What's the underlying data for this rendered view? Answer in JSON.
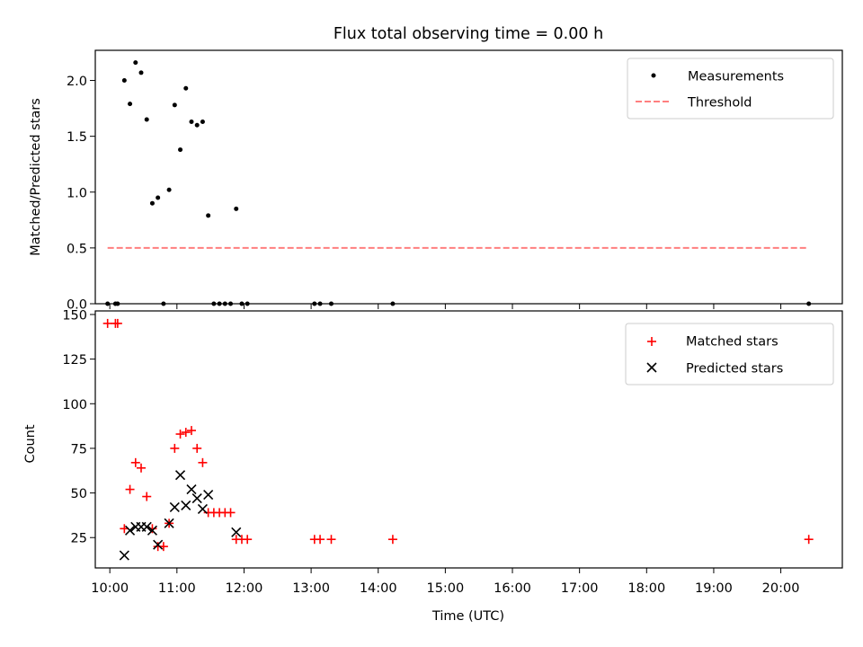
{
  "figure": {
    "title": "Flux total observing time = 0.00 h"
  },
  "chart_data": [
    {
      "type": "scatter",
      "title": "Flux total observing time = 0.00 h",
      "xlabel": "",
      "ylabel": "Matched/Predicted stars",
      "xlim": [
        "09:47",
        "20:55"
      ],
      "ylim": [
        0,
        2.27
      ],
      "yticks": [
        0.0,
        0.5,
        1.0,
        1.5,
        2.0
      ],
      "ytick_labels": [
        "0.0",
        "0.5",
        "1.0",
        "1.5",
        "2.0"
      ],
      "legend": {
        "position": "top-right",
        "entries": [
          "Measurements",
          "Threshold"
        ]
      },
      "series": [
        {
          "name": "Measurements",
          "kind": "scatter",
          "marker": "dot",
          "color": "#000000",
          "points": [
            {
              "x": "09:58",
              "y": 0.0
            },
            {
              "x": "10:05",
              "y": 0.0
            },
            {
              "x": "10:07",
              "y": 0.0
            },
            {
              "x": "10:13",
              "y": 2.0
            },
            {
              "x": "10:18",
              "y": 1.79
            },
            {
              "x": "10:23",
              "y": 2.16
            },
            {
              "x": "10:28",
              "y": 2.07
            },
            {
              "x": "10:33",
              "y": 1.65
            },
            {
              "x": "10:38",
              "y": 0.9
            },
            {
              "x": "10:43",
              "y": 0.95
            },
            {
              "x": "10:48",
              "y": 0.0
            },
            {
              "x": "10:53",
              "y": 1.02
            },
            {
              "x": "10:58",
              "y": 1.78
            },
            {
              "x": "11:03",
              "y": 1.38
            },
            {
              "x": "11:08",
              "y": 1.93
            },
            {
              "x": "11:13",
              "y": 1.63
            },
            {
              "x": "11:18",
              "y": 1.6
            },
            {
              "x": "11:23",
              "y": 1.63
            },
            {
              "x": "11:28",
              "y": 0.79
            },
            {
              "x": "11:33",
              "y": 0.0
            },
            {
              "x": "11:38",
              "y": 0.0
            },
            {
              "x": "11:43",
              "y": 0.0
            },
            {
              "x": "11:48",
              "y": 0.0
            },
            {
              "x": "11:53",
              "y": 0.85
            },
            {
              "x": "11:58",
              "y": 0.0
            },
            {
              "x": "12:03",
              "y": 0.0
            },
            {
              "x": "13:03",
              "y": 0.0
            },
            {
              "x": "13:08",
              "y": 0.0
            },
            {
              "x": "13:18",
              "y": 0.0
            },
            {
              "x": "14:13",
              "y": 0.0
            },
            {
              "x": "20:25",
              "y": 0.0
            }
          ]
        },
        {
          "name": "Threshold",
          "kind": "line",
          "style": "dashed",
          "color": "#ff7f7f",
          "points": [
            {
              "x": "09:58",
              "y": 0.5
            },
            {
              "x": "20:25",
              "y": 0.5
            }
          ]
        }
      ]
    },
    {
      "type": "scatter",
      "title": "",
      "xlabel": "Time (UTC)",
      "ylabel": "Count",
      "xlim": [
        "09:47",
        "20:55"
      ],
      "ylim": [
        8,
        152
      ],
      "yticks": [
        25,
        50,
        75,
        100,
        125,
        150
      ],
      "ytick_labels": [
        "25",
        "50",
        "75",
        "100",
        "125",
        "150"
      ],
      "xticks": [
        "10:00",
        "11:00",
        "12:00",
        "13:00",
        "14:00",
        "15:00",
        "16:00",
        "17:00",
        "18:00",
        "19:00",
        "20:00"
      ],
      "xtick_labels": [
        "10:00",
        "11:00",
        "12:00",
        "13:00",
        "14:00",
        "15:00",
        "16:00",
        "17:00",
        "18:00",
        "19:00",
        "20:00"
      ],
      "legend": {
        "position": "top-right",
        "entries": [
          "Matched stars",
          "Predicted stars"
        ]
      },
      "series": [
        {
          "name": "Matched stars",
          "marker": "plus",
          "color": "#ff0000",
          "points": [
            {
              "x": "09:58",
              "y": 145
            },
            {
              "x": "10:05",
              "y": 145
            },
            {
              "x": "10:07",
              "y": 145
            },
            {
              "x": "10:13",
              "y": 30
            },
            {
              "x": "10:18",
              "y": 52
            },
            {
              "x": "10:23",
              "y": 67
            },
            {
              "x": "10:28",
              "y": 64
            },
            {
              "x": "10:33",
              "y": 48
            },
            {
              "x": "10:38",
              "y": 30
            },
            {
              "x": "10:43",
              "y": 20
            },
            {
              "x": "10:48",
              "y": 20
            },
            {
              "x": "10:53",
              "y": 33
            },
            {
              "x": "10:58",
              "y": 75
            },
            {
              "x": "11:03",
              "y": 83
            },
            {
              "x": "11:08",
              "y": 84
            },
            {
              "x": "11:13",
              "y": 85
            },
            {
              "x": "11:18",
              "y": 75
            },
            {
              "x": "11:23",
              "y": 67
            },
            {
              "x": "11:28",
              "y": 39
            },
            {
              "x": "11:33",
              "y": 39
            },
            {
              "x": "11:38",
              "y": 39
            },
            {
              "x": "11:43",
              "y": 39
            },
            {
              "x": "11:48",
              "y": 39
            },
            {
              "x": "11:53",
              "y": 24
            },
            {
              "x": "11:58",
              "y": 24
            },
            {
              "x": "12:03",
              "y": 24
            },
            {
              "x": "13:03",
              "y": 24
            },
            {
              "x": "13:08",
              "y": 24
            },
            {
              "x": "13:18",
              "y": 24
            },
            {
              "x": "14:13",
              "y": 24
            },
            {
              "x": "20:25",
              "y": 24
            }
          ]
        },
        {
          "name": "Predicted stars",
          "marker": "x",
          "color": "#000000",
          "points": [
            {
              "x": "10:13",
              "y": 15
            },
            {
              "x": "10:18",
              "y": 29
            },
            {
              "x": "10:23",
              "y": 31
            },
            {
              "x": "10:28",
              "y": 31
            },
            {
              "x": "10:33",
              "y": 31
            },
            {
              "x": "10:38",
              "y": 29
            },
            {
              "x": "10:43",
              "y": 21
            },
            {
              "x": "10:53",
              "y": 33
            },
            {
              "x": "10:58",
              "y": 42
            },
            {
              "x": "11:03",
              "y": 60
            },
            {
              "x": "11:08",
              "y": 43
            },
            {
              "x": "11:13",
              "y": 52
            },
            {
              "x": "11:18",
              "y": 47
            },
            {
              "x": "11:23",
              "y": 41
            },
            {
              "x": "11:28",
              "y": 49
            },
            {
              "x": "11:53",
              "y": 28
            }
          ]
        }
      ]
    }
  ]
}
